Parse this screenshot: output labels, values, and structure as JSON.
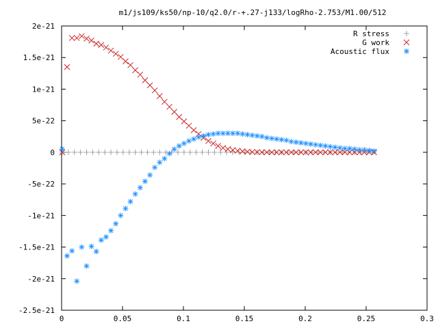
{
  "chart_data": {
    "type": "scatter",
    "title": "m1/js109/ks50/np-10/q2.0/r-+.27-j133/logRho-2.753/M1.00/512",
    "xlabel": "",
    "ylabel": "",
    "xlim": [
      0,
      0.3
    ],
    "ylim": [
      -2.5e-21,
      2e-21
    ],
    "grid": false,
    "legend_position": "top-right",
    "x_ticks": [
      {
        "value": 0,
        "label": "0"
      },
      {
        "value": 0.05,
        "label": "0.05"
      },
      {
        "value": 0.1,
        "label": "0.1"
      },
      {
        "value": 0.15,
        "label": "0.15"
      },
      {
        "value": 0.2,
        "label": "0.2"
      },
      {
        "value": 0.25,
        "label": "0.25"
      },
      {
        "value": 0.3,
        "label": "0.3"
      }
    ],
    "y_ticks": [
      {
        "value": 2e-21,
        "label": "2e-21"
      },
      {
        "value": 1.5e-21,
        "label": "1.5e-21"
      },
      {
        "value": 1e-21,
        "label": "1e-21"
      },
      {
        "value": 5e-22,
        "label": "5e-22"
      },
      {
        "value": 0,
        "label": "0"
      },
      {
        "value": -5e-22,
        "label": "-5e-22"
      },
      {
        "value": -1e-21,
        "label": "-1e-21"
      },
      {
        "value": -1.5e-21,
        "label": "-1.5e-21"
      },
      {
        "value": -2e-21,
        "label": "-2e-21"
      },
      {
        "value": -2.5e-21,
        "label": "-2.5e-21"
      }
    ],
    "series": [
      {
        "name": "R stress",
        "marker": "plus",
        "color": "#a0a0a4",
        "points": [
          [
            0.0005,
            0
          ],
          [
            0.0055,
            0
          ],
          [
            0.0105,
            0
          ],
          [
            0.0155,
            0
          ],
          [
            0.0205,
            0
          ],
          [
            0.0255,
            0
          ],
          [
            0.0305,
            0
          ],
          [
            0.0355,
            0
          ],
          [
            0.0405,
            0
          ],
          [
            0.0455,
            0
          ],
          [
            0.0505,
            0
          ],
          [
            0.0555,
            0
          ],
          [
            0.0605,
            0
          ],
          [
            0.0655,
            0
          ],
          [
            0.0705,
            0
          ],
          [
            0.0755,
            0
          ],
          [
            0.0805,
            0
          ],
          [
            0.0855,
            0
          ],
          [
            0.0905,
            0
          ],
          [
            0.0955,
            0
          ],
          [
            0.1005,
            0
          ],
          [
            0.1055,
            0
          ],
          [
            0.1105,
            0
          ],
          [
            0.1155,
            0
          ],
          [
            0.1205,
            0
          ],
          [
            0.1255,
            0
          ],
          [
            0.1305,
            0
          ],
          [
            0.1355,
            0
          ],
          [
            0.1405,
            0
          ],
          [
            0.1455,
            0
          ],
          [
            0.1505,
            0
          ],
          [
            0.1555,
            0
          ],
          [
            0.1605,
            0
          ],
          [
            0.1655,
            0
          ],
          [
            0.1705,
            0
          ],
          [
            0.1755,
            0
          ],
          [
            0.1805,
            0
          ],
          [
            0.1855,
            0
          ],
          [
            0.1905,
            0
          ],
          [
            0.1955,
            0
          ],
          [
            0.2005,
            0
          ],
          [
            0.2055,
            0
          ],
          [
            0.2105,
            0
          ],
          [
            0.2155,
            0
          ],
          [
            0.2205,
            0
          ],
          [
            0.2255,
            0
          ],
          [
            0.2305,
            0
          ],
          [
            0.2355,
            0
          ],
          [
            0.2405,
            0
          ],
          [
            0.2455,
            0
          ],
          [
            0.2505,
            0
          ],
          [
            0.2555,
            0
          ]
        ]
      },
      {
        "name": "G work",
        "marker": "cross",
        "color": "#cc2222",
        "points": [
          [
            0.0005,
            0
          ],
          [
            0.0045,
            1.35e-21
          ],
          [
            0.0085,
            1.81e-21
          ],
          [
            0.0125,
            1.81e-21
          ],
          [
            0.0165,
            1.84e-21
          ],
          [
            0.0205,
            1.8e-21
          ],
          [
            0.0245,
            1.77e-21
          ],
          [
            0.0285,
            1.72e-21
          ],
          [
            0.0325,
            1.7e-21
          ],
          [
            0.0365,
            1.66e-21
          ],
          [
            0.0405,
            1.61e-21
          ],
          [
            0.0445,
            1.56e-21
          ],
          [
            0.0485,
            1.51e-21
          ],
          [
            0.0525,
            1.44e-21
          ],
          [
            0.0565,
            1.38e-21
          ],
          [
            0.0605,
            1.3e-21
          ],
          [
            0.0645,
            1.23e-21
          ],
          [
            0.0685,
            1.14e-21
          ],
          [
            0.0725,
            1.06e-21
          ],
          [
            0.0765,
            9.8e-22
          ],
          [
            0.0805,
            8.9e-22
          ],
          [
            0.0845,
            8e-22
          ],
          [
            0.0885,
            7.2e-22
          ],
          [
            0.0925,
            6.4e-22
          ],
          [
            0.0965,
            5.6e-22
          ],
          [
            0.1005,
            4.9e-22
          ],
          [
            0.1045,
            4.2e-22
          ],
          [
            0.1085,
            3.5e-22
          ],
          [
            0.1125,
            2.9e-22
          ],
          [
            0.1165,
            2.3e-22
          ],
          [
            0.1205,
            1.8e-22
          ],
          [
            0.1245,
            1.4e-22
          ],
          [
            0.1285,
            1e-22
          ],
          [
            0.1325,
            7e-23
          ],
          [
            0.1365,
            5e-23
          ],
          [
            0.1405,
            3.5e-23
          ],
          [
            0.1445,
            2.5e-23
          ],
          [
            0.1485,
            1.5e-23
          ],
          [
            0.1525,
            1e-23
          ],
          [
            0.1565,
            5e-24
          ],
          [
            0.1605,
            3e-24
          ],
          [
            0.1645,
            1e-24
          ],
          [
            0.1685,
            0
          ],
          [
            0.1725,
            0
          ],
          [
            0.1765,
            0
          ],
          [
            0.1805,
            0
          ],
          [
            0.1845,
            0
          ],
          [
            0.1885,
            0
          ],
          [
            0.1925,
            0
          ],
          [
            0.1965,
            0
          ],
          [
            0.2005,
            0
          ],
          [
            0.2045,
            0
          ],
          [
            0.2085,
            0
          ],
          [
            0.2125,
            0
          ],
          [
            0.2165,
            0
          ],
          [
            0.2205,
            0
          ],
          [
            0.2245,
            0
          ],
          [
            0.2285,
            0
          ],
          [
            0.2325,
            0
          ],
          [
            0.2365,
            0
          ],
          [
            0.2405,
            0
          ],
          [
            0.2445,
            0
          ],
          [
            0.2485,
            0
          ],
          [
            0.2525,
            0
          ],
          [
            0.2565,
            0
          ]
        ]
      },
      {
        "name": "Acoustic flux",
        "marker": "star",
        "color": "#1e90ff",
        "points": [
          [
            0.0005,
            5e-23
          ],
          [
            0.0045,
            -1.64e-21
          ],
          [
            0.0085,
            -1.56e-21
          ],
          [
            0.0125,
            -2.04e-21
          ],
          [
            0.0165,
            -1.5e-21
          ],
          [
            0.0205,
            -1.8e-21
          ],
          [
            0.0245,
            -1.49e-21
          ],
          [
            0.0285,
            -1.57e-21
          ],
          [
            0.0325,
            -1.39e-21
          ],
          [
            0.0365,
            -1.34e-21
          ],
          [
            0.0405,
            -1.24e-21
          ],
          [
            0.0445,
            -1.13e-21
          ],
          [
            0.0485,
            -1e-21
          ],
          [
            0.0525,
            -8.9e-22
          ],
          [
            0.0565,
            -7.8e-22
          ],
          [
            0.0605,
            -6.6e-22
          ],
          [
            0.0645,
            -5.6e-22
          ],
          [
            0.0685,
            -4.6e-22
          ],
          [
            0.0725,
            -3.6e-22
          ],
          [
            0.0765,
            -2.4e-22
          ],
          [
            0.0805,
            -1.6e-22
          ],
          [
            0.0845,
            -1e-22
          ],
          [
            0.0885,
            -2e-23
          ],
          [
            0.0925,
            5e-23
          ],
          [
            0.0965,
            1e-22
          ],
          [
            0.1005,
            1.4e-22
          ],
          [
            0.1045,
            1.8e-22
          ],
          [
            0.1085,
            2.1e-22
          ],
          [
            0.1125,
            2.4e-22
          ],
          [
            0.1165,
            2.6e-22
          ],
          [
            0.1205,
            2.8e-22
          ],
          [
            0.1245,
            2.9e-22
          ],
          [
            0.1285,
            3e-22
          ],
          [
            0.1325,
            3e-22
          ],
          [
            0.1365,
            3e-22
          ],
          [
            0.1405,
            3e-22
          ],
          [
            0.1445,
            3e-22
          ],
          [
            0.1485,
            2.9e-22
          ],
          [
            0.1525,
            2.8e-22
          ],
          [
            0.1565,
            2.7e-22
          ],
          [
            0.1605,
            2.6e-22
          ],
          [
            0.1645,
            2.5e-22
          ],
          [
            0.1685,
            2.3e-22
          ],
          [
            0.1725,
            2.2e-22
          ],
          [
            0.1765,
            2.1e-22
          ],
          [
            0.1805,
            2e-22
          ],
          [
            0.1845,
            1.9e-22
          ],
          [
            0.1885,
            1.7e-22
          ],
          [
            0.1925,
            1.6e-22
          ],
          [
            0.1965,
            1.5e-22
          ],
          [
            0.2005,
            1.4e-22
          ],
          [
            0.2045,
            1.3e-22
          ],
          [
            0.2085,
            1.2e-22
          ],
          [
            0.2125,
            1.1e-22
          ],
          [
            0.2165,
            1e-22
          ],
          [
            0.2205,
            9e-23
          ],
          [
            0.2245,
            8e-23
          ],
          [
            0.2285,
            7e-23
          ],
          [
            0.2325,
            6e-23
          ],
          [
            0.2365,
            6e-23
          ],
          [
            0.2405,
            5e-23
          ],
          [
            0.2445,
            4e-23
          ],
          [
            0.2485,
            4e-23
          ],
          [
            0.2525,
            3e-23
          ],
          [
            0.2565,
            2e-23
          ]
        ]
      }
    ]
  }
}
